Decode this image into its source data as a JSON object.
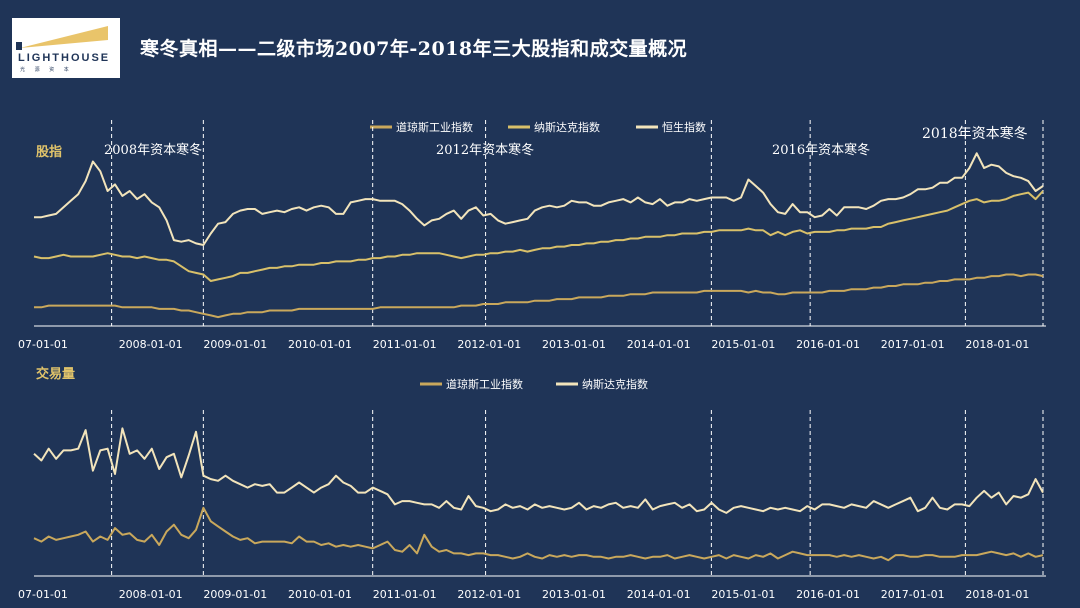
{
  "logo": {
    "brand": "LIGHTHOUSE",
    "sub": "光 源 资 本"
  },
  "title": "寒冬真相——二级市场2007年-2018年三大股指和成交量概况",
  "colors": {
    "background": "#1f3457",
    "dow": "#c9a85c",
    "nasdaq": "#d8c06a",
    "hsi": "#f2e4bb",
    "axis": "#ffffff",
    "section_label": "#e0c36a"
  },
  "chart_data": [
    {
      "type": "line",
      "panel_label": "股指",
      "x_ticks": [
        "07-01-01",
        "2008-01-01",
        "2009-01-01",
        "2010-01-01",
        "2011-01-01",
        "2012-01-01",
        "2013-01-01",
        "2014-01-01",
        "2015-01-01",
        "2016-01-01",
        "2017-01-01",
        "2018-01-01"
      ],
      "annotations": [
        "2008年资本寒冬",
        "2012年资本寒冬",
        "2016年资本寒冬",
        "2018年资本寒冬"
      ],
      "annotation_dates": [
        "2007-12",
        "2009-01",
        "2011-01",
        "2012-05",
        "2015-01",
        "2016-03",
        "2018-01",
        "2018-12"
      ],
      "series": [
        {
          "name": "道琼斯工业指数",
          "color": "#c9a85c",
          "values": [
            9,
            9,
            10,
            10,
            10,
            10,
            10,
            10,
            10,
            10,
            10,
            10,
            9,
            9,
            9,
            9,
            9,
            8,
            8,
            8,
            7,
            7,
            6,
            5,
            4,
            3,
            4,
            5,
            5,
            6,
            6,
            6,
            7,
            7,
            7,
            7,
            8,
            8,
            8,
            8,
            8,
            8,
            8,
            8,
            8,
            8,
            8,
            9,
            9,
            9,
            9,
            9,
            9,
            9,
            9,
            9,
            9,
            9,
            10,
            10,
            10,
            11,
            11,
            11,
            12,
            12,
            12,
            12,
            13,
            13,
            13,
            14,
            14,
            14,
            15,
            15,
            15,
            15,
            16,
            16,
            16,
            17,
            17,
            17,
            18,
            18,
            18,
            18,
            18,
            18,
            18,
            19,
            19,
            19,
            19,
            19,
            19,
            18,
            19,
            18,
            18,
            17,
            17,
            18,
            18,
            18,
            18,
            18,
            19,
            19,
            19,
            20,
            20,
            20,
            21,
            21,
            22,
            22,
            23,
            23,
            23,
            24,
            24,
            25,
            25,
            26,
            26,
            26,
            27,
            27,
            28,
            28,
            29,
            29,
            28,
            29,
            29,
            28
          ]
        },
        {
          "name": "纳斯达克指数",
          "color": "#d8c06a",
          "values": [
            40,
            39,
            39,
            40,
            41,
            40,
            40,
            40,
            40,
            41,
            42,
            41,
            40,
            40,
            39,
            40,
            39,
            38,
            38,
            37,
            34,
            31,
            30,
            29,
            25,
            26,
            27,
            28,
            30,
            30,
            31,
            32,
            33,
            33,
            34,
            34,
            35,
            35,
            35,
            36,
            36,
            37,
            37,
            37,
            38,
            38,
            39,
            39,
            40,
            40,
            41,
            41,
            42,
            42,
            42,
            42,
            41,
            40,
            39,
            40,
            41,
            41,
            42,
            42,
            43,
            43,
            44,
            43,
            44,
            45,
            45,
            46,
            46,
            47,
            47,
            48,
            48,
            49,
            49,
            50,
            50,
            51,
            51,
            52,
            52,
            52,
            53,
            53,
            54,
            54,
            54,
            55,
            55,
            56,
            56,
            56,
            56,
            57,
            56,
            56,
            53,
            55,
            53,
            55,
            56,
            54,
            55,
            55,
            55,
            56,
            56,
            57,
            57,
            57,
            58,
            58,
            60,
            61,
            62,
            63,
            64,
            65,
            66,
            67,
            68,
            70,
            72,
            74,
            75,
            73,
            74,
            74,
            75,
            77,
            78,
            79,
            75,
            80
          ]
        },
        {
          "name": "恒生指数",
          "color": "#f2e4bb",
          "values": [
            64,
            64,
            65,
            66,
            70,
            74,
            78,
            86,
            98,
            92,
            80,
            84,
            77,
            80,
            75,
            78,
            73,
            70,
            62,
            50,
            49,
            50,
            48,
            47,
            54,
            60,
            61,
            66,
            68,
            69,
            69,
            66,
            67,
            68,
            67,
            69,
            70,
            68,
            70,
            71,
            70,
            66,
            66,
            73,
            74,
            75,
            75,
            74,
            74,
            74,
            72,
            68,
            63,
            59,
            62,
            63,
            66,
            68,
            63,
            68,
            70,
            65,
            66,
            62,
            60,
            61,
            62,
            63,
            68,
            70,
            71,
            70,
            71,
            74,
            73,
            73,
            71,
            71,
            73,
            74,
            75,
            73,
            76,
            73,
            72,
            75,
            71,
            73,
            73,
            75,
            74,
            75,
            76,
            76,
            76,
            74,
            76,
            87,
            83,
            79,
            72,
            67,
            66,
            72,
            67,
            67,
            64,
            65,
            69,
            65,
            70,
            70,
            70,
            69,
            71,
            74,
            75,
            75,
            76,
            78,
            81,
            81,
            82,
            85,
            85,
            88,
            88,
            94,
            103,
            94,
            96,
            95,
            91,
            89,
            88,
            86,
            80,
            83
          ]
        }
      ]
    },
    {
      "type": "line",
      "panel_label": "交易量",
      "x_ticks": [
        "07-01-01",
        "2008-01-01",
        "2009-01-01",
        "2010-01-01",
        "2011-01-01",
        "2012-01-01",
        "2013-01-01",
        "2014-01-01",
        "2015-01-01",
        "2016-01-01",
        "2017-01-01",
        "2018-01-01"
      ],
      "annotation_dates": [
        "2007-12",
        "2009-01",
        "2011-01",
        "2012-05",
        "2015-01",
        "2016-03",
        "2018-01",
        "2018-12"
      ],
      "series": [
        {
          "name": "道琼斯工业指数",
          "color": "#c9a85c",
          "values": [
            20,
            18,
            21,
            19,
            20,
            21,
            22,
            24,
            18,
            21,
            19,
            26,
            22,
            23,
            19,
            18,
            22,
            16,
            24,
            28,
            22,
            20,
            25,
            38,
            30,
            27,
            24,
            21,
            19,
            20,
            17,
            18,
            18,
            18,
            18,
            17,
            21,
            18,
            18,
            16,
            17,
            15,
            16,
            15,
            16,
            15,
            14,
            16,
            18,
            13,
            12,
            16,
            11,
            22,
            15,
            12,
            13,
            11,
            11,
            10,
            11,
            11,
            10,
            10,
            9,
            8,
            9,
            11,
            9,
            8,
            10,
            9,
            10,
            9,
            10,
            10,
            9,
            9,
            8,
            9,
            9,
            10,
            9,
            8,
            9,
            9,
            10,
            8,
            9,
            10,
            9,
            8,
            9,
            10,
            8,
            10,
            9,
            8,
            10,
            9,
            11,
            8,
            10,
            12,
            11,
            10,
            10,
            10,
            10,
            9,
            10,
            9,
            10,
            9,
            8,
            9,
            7,
            10,
            10,
            9,
            9,
            10,
            10,
            9,
            9,
            9,
            10,
            10,
            10,
            11,
            12,
            11,
            10,
            11,
            9,
            11,
            9,
            10
          ]
        },
        {
          "name": "纳斯达克指数",
          "color": "#f2e4bb",
          "values": [
            70,
            66,
            73,
            67,
            72,
            72,
            73,
            84,
            60,
            72,
            73,
            58,
            85,
            70,
            72,
            67,
            73,
            61,
            68,
            70,
            56,
            69,
            83,
            57,
            55,
            54,
            57,
            54,
            52,
            50,
            52,
            51,
            52,
            47,
            47,
            50,
            53,
            50,
            47,
            50,
            52,
            57,
            53,
            51,
            47,
            47,
            50,
            48,
            46,
            40,
            42,
            42,
            41,
            40,
            40,
            38,
            42,
            38,
            37,
            45,
            39,
            38,
            36,
            37,
            40,
            38,
            39,
            37,
            40,
            38,
            39,
            38,
            37,
            38,
            41,
            37,
            39,
            38,
            40,
            41,
            38,
            39,
            38,
            43,
            37,
            39,
            40,
            41,
            38,
            40,
            36,
            37,
            41,
            37,
            35,
            38,
            39,
            38,
            37,
            36,
            38,
            37,
            38,
            37,
            36,
            39,
            37,
            40,
            40,
            39,
            38,
            40,
            39,
            38,
            42,
            40,
            38,
            40,
            42,
            44,
            36,
            38,
            44,
            38,
            37,
            40,
            40,
            39,
            44,
            48,
            44,
            47,
            40,
            45,
            44,
            46,
            55,
            47
          ]
        }
      ]
    }
  ]
}
